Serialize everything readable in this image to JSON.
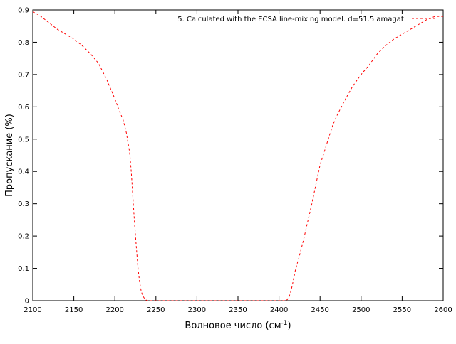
{
  "chart_data": {
    "type": "line",
    "title": "",
    "xlabel": "Волновое число (см",
    "xlabel_sup": "-1",
    "xlabel_end": ")",
    "ylabel": "Пропускание (%)",
    "xlim": [
      2100,
      2600
    ],
    "ylim": [
      0,
      0.9
    ],
    "x_ticks": [
      2100,
      2150,
      2200,
      2250,
      2300,
      2350,
      2400,
      2450,
      2500,
      2550,
      2600
    ],
    "y_ticks": [
      0,
      0.1,
      0.2,
      0.3,
      0.4,
      0.5,
      0.6,
      0.7,
      0.8,
      0.9
    ],
    "y_tick_labels": [
      "0",
      "0.1",
      "0.2",
      "0.3",
      "0.4",
      "0.5",
      "0.6",
      "0.7",
      "0.8",
      "0.9"
    ],
    "grid": false,
    "legend_position": "top-right",
    "series": [
      {
        "name": "5. Calculated with the ECSA line-mixing model. d=51.5 amagat.",
        "color": "#ff0000",
        "dash": "dashed",
        "x": [
          2100,
          2110,
          2120,
          2130,
          2140,
          2150,
          2160,
          2170,
          2175,
          2180,
          2185,
          2190,
          2195,
          2200,
          2205,
          2210,
          2214,
          2218,
          2220,
          2222,
          2224,
          2226,
          2228,
          2230,
          2232,
          2234,
          2236,
          2238,
          2240,
          2250,
          2300,
          2350,
          2400,
          2408,
          2410,
          2412,
          2414,
          2416,
          2418,
          2420,
          2425,
          2430,
          2435,
          2440,
          2445,
          2450,
          2455,
          2460,
          2465,
          2470,
          2480,
          2490,
          2500,
          2510,
          2520,
          2530,
          2540,
          2550,
          2560,
          2570,
          2580,
          2590,
          2600
        ],
        "values": [
          0.895,
          0.88,
          0.86,
          0.84,
          0.825,
          0.81,
          0.79,
          0.765,
          0.75,
          0.735,
          0.71,
          0.685,
          0.655,
          0.625,
          0.59,
          0.56,
          0.52,
          0.46,
          0.4,
          0.32,
          0.24,
          0.17,
          0.105,
          0.06,
          0.03,
          0.015,
          0.007,
          0.002,
          0,
          0,
          0,
          0,
          0,
          0,
          0.003,
          0.01,
          0.025,
          0.045,
          0.07,
          0.095,
          0.14,
          0.19,
          0.245,
          0.3,
          0.36,
          0.42,
          0.46,
          0.5,
          0.54,
          0.57,
          0.62,
          0.665,
          0.7,
          0.73,
          0.765,
          0.79,
          0.81,
          0.825,
          0.84,
          0.855,
          0.87,
          0.88,
          0.88
        ]
      }
    ]
  }
}
